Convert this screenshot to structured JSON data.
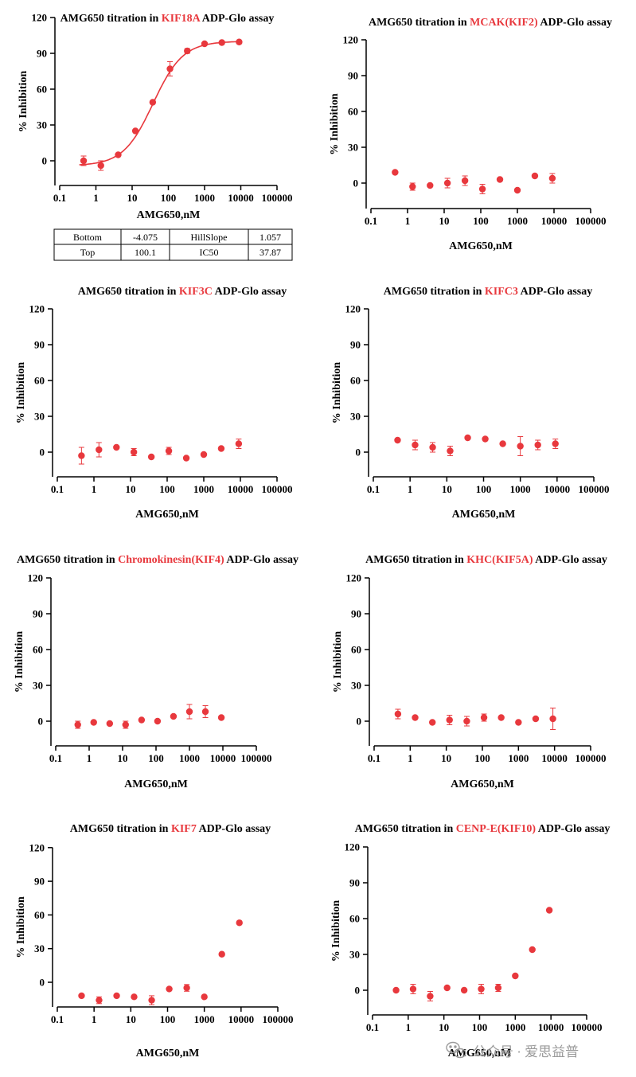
{
  "style": {
    "accent_color": "#e8383d",
    "text_color": "#000000",
    "watermark_color": "#9a9a9a"
  },
  "watermark": {
    "icon": "wechat-icon",
    "text": "公众号 · 爱思益普"
  },
  "chart_data": [
    {
      "type": "scatter",
      "title": {
        "prefix": "AMG650 titration  in ",
        "target": "KIF18A",
        "suffix": " ADP-Glo assay"
      },
      "xlabel": "AMG650,nM",
      "ylabel": "% Inhibition",
      "x_scale": "log",
      "xlim": [
        0.1,
        100000
      ],
      "ylim": [
        -15,
        120
      ],
      "x_ticks": [
        "0.1",
        "1",
        "10",
        "100",
        "1000",
        "10000",
        "100000"
      ],
      "y_ticks": [
        "0",
        "30",
        "60",
        "90",
        "120"
      ],
      "fit": {
        "model": "four-parameter logistic",
        "bottom": -4.075,
        "top": 100.1,
        "ic50": 37.87,
        "hill_slope": 1.057
      },
      "params_table": {
        "rows": [
          [
            "Bottom",
            "-4.075",
            "HillSlope",
            "1.057"
          ],
          [
            "Top",
            "100.1",
            "IC50",
            "37.87"
          ]
        ]
      },
      "series": [
        {
          "x": [
            0.457,
            1.37,
            4.12,
            12.3,
            37,
            111,
            333,
            1000,
            3000,
            9000
          ],
          "y": [
            0,
            -4,
            5,
            25,
            49,
            77,
            92,
            98,
            99,
            99.5
          ],
          "err": [
            4,
            4,
            1,
            1,
            1,
            6,
            2,
            1,
            1,
            1
          ]
        }
      ]
    },
    {
      "type": "scatter",
      "title": {
        "prefix": "AMG650 titration in ",
        "target": "MCAK(KIF2)",
        "suffix": " ADP-Glo assay"
      },
      "xlabel": "AMG650,nM",
      "ylabel": "% Inhibition",
      "x_scale": "log",
      "xlim": [
        0.1,
        100000
      ],
      "ylim": [
        -15,
        120
      ],
      "x_ticks": [
        "0.1",
        "1",
        "10",
        "100",
        "1000",
        "10000",
        "100000"
      ],
      "y_ticks": [
        "0",
        "30",
        "60",
        "90",
        "120"
      ],
      "series": [
        {
          "x": [
            0.457,
            1.37,
            4.12,
            12.3,
            37,
            111,
            333,
            1000,
            3000,
            9000
          ],
          "y": [
            9,
            -3,
            -2,
            0,
            2,
            -5,
            3,
            -6,
            6,
            4
          ],
          "err": [
            1,
            3,
            1,
            4,
            4,
            4,
            1,
            1,
            1,
            4
          ]
        }
      ]
    },
    {
      "type": "scatter",
      "title": {
        "prefix": "AMG650 titration in ",
        "target": "KIF3C",
        "suffix": " ADP-Glo assay"
      },
      "xlabel": "AMG650,nM",
      "ylabel": "% Inhibition",
      "x_scale": "log",
      "xlim": [
        0.1,
        100000
      ],
      "ylim": [
        -15,
        120
      ],
      "x_ticks": [
        "0.1",
        "1",
        "10",
        "100",
        "1000",
        "10000",
        "100000"
      ],
      "y_ticks": [
        "0",
        "30",
        "60",
        "90",
        "120"
      ],
      "series": [
        {
          "x": [
            0.457,
            1.37,
            4.12,
            12.3,
            37,
            111,
            333,
            1000,
            3000,
            9000
          ],
          "y": [
            -3,
            2,
            4,
            0,
            -4,
            1,
            -5,
            -2,
            3,
            7
          ],
          "err": [
            7,
            6,
            1,
            3,
            1,
            3,
            1,
            1,
            1,
            4
          ]
        }
      ]
    },
    {
      "type": "scatter",
      "title": {
        "prefix": "AMG650 titration in ",
        "target": "KIFC3",
        "suffix": " ADP-Glo assay"
      },
      "xlabel": "AMG650,nM",
      "ylabel": "% Inhibition",
      "x_scale": "log",
      "xlim": [
        0.1,
        100000
      ],
      "ylim": [
        -15,
        120
      ],
      "x_ticks": [
        "0.1",
        "1",
        "10",
        "100",
        "1000",
        "10000",
        "100000"
      ],
      "y_ticks": [
        "0",
        "30",
        "60",
        "90",
        "120"
      ],
      "series": [
        {
          "x": [
            0.457,
            1.37,
            4.12,
            12.3,
            37,
            111,
            333,
            1000,
            3000,
            9000
          ],
          "y": [
            10,
            6,
            4,
            1,
            12,
            11,
            7,
            5,
            6,
            7
          ],
          "err": [
            1,
            4,
            4,
            4,
            1,
            1,
            1,
            8,
            4,
            4
          ]
        }
      ]
    },
    {
      "type": "scatter",
      "title": {
        "prefix": "AMG650 titration in ",
        "target": "Chromokinesin(KIF4)",
        "suffix": " ADP-Glo assay"
      },
      "xlabel": "AMG650,nM",
      "ylabel": "% Inhibition",
      "x_scale": "log",
      "xlim": [
        0.1,
        100000
      ],
      "ylim": [
        -15,
        120
      ],
      "x_ticks": [
        "0.1",
        "1",
        "10",
        "100",
        "1000",
        "10000",
        "100000"
      ],
      "y_ticks": [
        "0",
        "30",
        "60",
        "90",
        "120"
      ],
      "series": [
        {
          "x": [
            0.457,
            1.37,
            4.12,
            12.3,
            37,
            111,
            333,
            1000,
            3000,
            9000
          ],
          "y": [
            -3,
            -1,
            -2,
            -3,
            1,
            0,
            4,
            8,
            8,
            3
          ],
          "err": [
            3,
            1,
            1,
            3,
            1,
            1,
            1,
            6,
            5,
            1
          ]
        }
      ]
    },
    {
      "type": "scatter",
      "title": {
        "prefix": "AMG650 titration in ",
        "target": "KHC(KIF5A)",
        "suffix": " ADP-Glo assay"
      },
      "xlabel": "AMG650,nM",
      "ylabel": "% Inhibition",
      "x_scale": "log",
      "xlim": [
        0.1,
        100000
      ],
      "ylim": [
        -15,
        120
      ],
      "x_ticks": [
        "0.1",
        "1",
        "10",
        "100",
        "1000",
        "10000",
        "100000"
      ],
      "y_ticks": [
        "0",
        "30",
        "60",
        "90",
        "120"
      ],
      "series": [
        {
          "x": [
            0.457,
            1.37,
            4.12,
            12.3,
            37,
            111,
            333,
            1000,
            3000,
            9000
          ],
          "y": [
            6,
            3,
            -1,
            1,
            0,
            3,
            3,
            -1,
            2,
            2
          ],
          "err": [
            4,
            1,
            1,
            4,
            4,
            3,
            1,
            1,
            1,
            9
          ]
        }
      ]
    },
    {
      "type": "scatter",
      "title": {
        "prefix": "AMG650 titration in ",
        "target": "KIF7",
        "suffix": " ADP-Glo assay"
      },
      "xlabel": "AMG650,nM",
      "ylabel": "% Inhibition",
      "x_scale": "log",
      "xlim": [
        0.1,
        100000
      ],
      "ylim": [
        -22,
        120
      ],
      "x_ticks": [
        "0.1",
        "1",
        "10",
        "100",
        "1000",
        "10000",
        "100000"
      ],
      "y_ticks": [
        "0",
        "30",
        "60",
        "90",
        "120"
      ],
      "series": [
        {
          "x": [
            0.457,
            1.37,
            4.12,
            12.3,
            37,
            111,
            333,
            1000,
            3000,
            9000
          ],
          "y": [
            -12,
            -16,
            -12,
            -13,
            -16,
            -6,
            -5,
            -13,
            25,
            53
          ],
          "err": [
            1,
            3,
            1,
            1,
            4,
            1,
            3,
            1,
            1,
            1
          ]
        }
      ]
    },
    {
      "type": "scatter",
      "title": {
        "prefix": "AMG650 titration in ",
        "target": "CENP-E(KIF10)",
        "suffix": " ADP-Glo assay"
      },
      "xlabel": "AMG650,nM",
      "ylabel": "% Inhibition",
      "x_scale": "log",
      "xlim": [
        0.1,
        100000
      ],
      "ylim": [
        -15,
        120
      ],
      "x_ticks": [
        "0.1",
        "1",
        "10",
        "100",
        "1000",
        "10000",
        "100000"
      ],
      "y_ticks": [
        "0",
        "30",
        "60",
        "90",
        "120"
      ],
      "series": [
        {
          "x": [
            0.457,
            1.37,
            4.12,
            12.3,
            37,
            111,
            333,
            1000,
            3000,
            9000
          ],
          "y": [
            0,
            1,
            -5,
            2,
            0,
            1,
            2,
            12,
            34,
            67
          ],
          "err": [
            1,
            4,
            4,
            1,
            1,
            4,
            3,
            1,
            1,
            1
          ]
        }
      ]
    }
  ]
}
